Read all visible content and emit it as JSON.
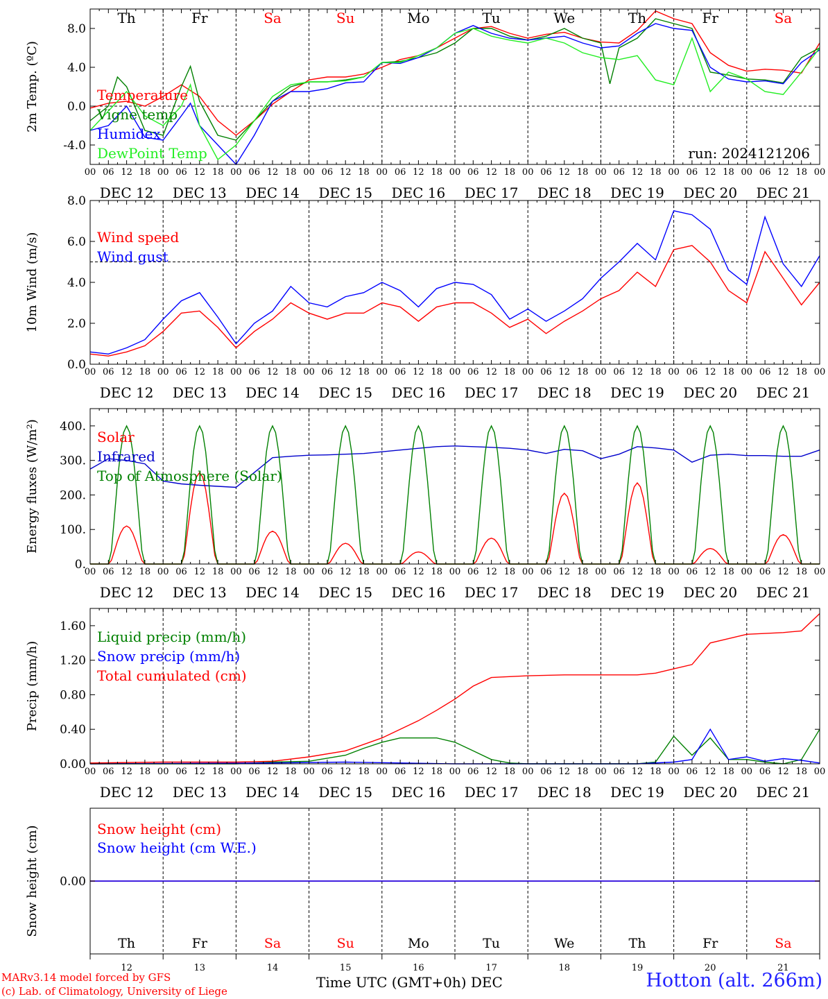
{
  "meta": {
    "run_label": "run: 2024121206",
    "model_credit": "MARv3.14 model forced by GFS",
    "copyright": "(c) Lab. of Climatology, University of Liege",
    "station": "Hotton (alt. 266m)",
    "x_axis_title": "Time UTC (GMT+0h)",
    "month": "DEC"
  },
  "days": [
    {
      "dow": "Th",
      "date": "DEC 12",
      "num": "12",
      "weekend": false
    },
    {
      "dow": "Fr",
      "date": "DEC 13",
      "num": "13",
      "weekend": false
    },
    {
      "dow": "Sa",
      "date": "DEC 14",
      "num": "14",
      "weekend": true
    },
    {
      "dow": "Su",
      "date": "DEC 15",
      "num": "15",
      "weekend": true
    },
    {
      "dow": "Mo",
      "date": "DEC 16",
      "num": "16",
      "weekend": false
    },
    {
      "dow": "Tu",
      "date": "DEC 17",
      "num": "17",
      "weekend": false
    },
    {
      "dow": "We",
      "date": "DEC 18",
      "num": "18",
      "weekend": false
    },
    {
      "dow": "Th",
      "date": "DEC 19",
      "num": "19",
      "weekend": false
    },
    {
      "dow": "Fr",
      "date": "DEC 20",
      "num": "20",
      "weekend": false
    },
    {
      "dow": "Sa",
      "date": "DEC 21",
      "num": "21",
      "weekend": true
    }
  ],
  "hour_ticks": [
    "00",
    "06",
    "12",
    "18"
  ],
  "final_tick": "00",
  "colors": {
    "red": "#ff0000",
    "darkgreen": "#008000",
    "blue": "#0000ff",
    "lightgreen": "#22ee22",
    "darkblue": "#0000cc"
  },
  "chart_data": [
    {
      "type": "line",
      "ylabel": "2m Temp. (ºC)",
      "ylim": [
        -6,
        10
      ],
      "yticks": [
        -4,
        0,
        4,
        8
      ],
      "ytick_labels": [
        "-4.0",
        "0.0",
        "4.0",
        "8.0"
      ],
      "ref_line": 0,
      "x_unit": "hours since DEC 12 00 UTC",
      "series": [
        {
          "name": "Temperature",
          "color": "#ff0000",
          "x": [
            0,
            6,
            12,
            18,
            24,
            30,
            36,
            42,
            48,
            54,
            60,
            66,
            72,
            78,
            84,
            90,
            96,
            102,
            108,
            114,
            120,
            126,
            132,
            138,
            144,
            150,
            156,
            162,
            168,
            174,
            180,
            186,
            192,
            198,
            204,
            210,
            216,
            222,
            228,
            234,
            240
          ],
          "y": [
            -0.2,
            0.3,
            0.5,
            0.0,
            1.0,
            2.2,
            1.0,
            -1.5,
            -3.0,
            -1.5,
            0.2,
            1.5,
            2.7,
            3.0,
            3.0,
            3.3,
            4.0,
            4.8,
            5.2,
            6.0,
            7.0,
            8.0,
            8.2,
            7.5,
            7.0,
            7.4,
            7.6,
            7.0,
            6.6,
            6.5,
            7.8,
            9.8,
            9.0,
            8.5,
            5.5,
            4.2,
            3.6,
            3.8,
            3.7,
            3.4,
            6.5
          ]
        },
        {
          "name": "Vigne temp",
          "color": "#008000",
          "x": [
            0,
            6,
            9,
            12,
            18,
            24,
            30,
            33,
            36,
            42,
            48,
            54,
            60,
            66,
            72,
            78,
            84,
            90,
            96,
            102,
            108,
            114,
            120,
            126,
            132,
            138,
            144,
            150,
            156,
            162,
            168,
            171,
            174,
            180,
            186,
            192,
            198,
            204,
            210,
            216,
            222,
            228,
            234,
            240
          ],
          "y": [
            -1.5,
            0.0,
            3.0,
            2.0,
            -2.5,
            -3.0,
            2.0,
            4.1,
            0.5,
            -3.0,
            -3.5,
            -1.5,
            0.5,
            2.0,
            2.5,
            2.5,
            2.7,
            3.0,
            4.5,
            4.6,
            5.0,
            5.5,
            6.5,
            8.0,
            8.0,
            7.2,
            6.8,
            7.2,
            8.0,
            7.0,
            6.5,
            2.3,
            6.0,
            7.0,
            9.0,
            8.5,
            8.0,
            3.5,
            3.2,
            2.8,
            2.7,
            2.4,
            5.0,
            6.0
          ]
        },
        {
          "name": "Humidex",
          "color": "#0000ff",
          "x": [
            0,
            6,
            12,
            18,
            24,
            30,
            33,
            36,
            42,
            48,
            54,
            60,
            66,
            72,
            78,
            84,
            90,
            96,
            102,
            108,
            114,
            120,
            126,
            132,
            138,
            144,
            150,
            156,
            162,
            168,
            174,
            180,
            186,
            192,
            198,
            204,
            210,
            216,
            222,
            228,
            234,
            240
          ],
          "y": [
            -2.5,
            -2.0,
            0.0,
            -3.2,
            -3.5,
            -1.0,
            0.3,
            -2.0,
            -4.0,
            -6.0,
            -3.0,
            0.5,
            1.5,
            1.5,
            1.8,
            2.4,
            2.5,
            4.5,
            4.4,
            5.0,
            6.0,
            7.5,
            8.3,
            7.5,
            7.0,
            6.8,
            7.0,
            7.2,
            6.5,
            6.0,
            6.2,
            7.5,
            8.5,
            8.0,
            7.8,
            4.0,
            2.8,
            2.5,
            2.6,
            2.3,
            4.5,
            5.8
          ]
        },
        {
          "name": "DewPoint Temp",
          "color": "#22ee22",
          "x": [
            0,
            6,
            12,
            18,
            24,
            30,
            33,
            36,
            42,
            48,
            54,
            60,
            66,
            72,
            78,
            84,
            90,
            96,
            102,
            108,
            114,
            120,
            126,
            132,
            138,
            144,
            150,
            156,
            162,
            168,
            174,
            180,
            186,
            192,
            198,
            204,
            210,
            216,
            222,
            228,
            234,
            240
          ],
          "y": [
            -2.5,
            -0.5,
            1.5,
            -1.0,
            -2.0,
            0.0,
            2.2,
            -2.0,
            -5.5,
            -4.0,
            -1.5,
            1.0,
            2.2,
            2.5,
            2.5,
            2.6,
            3.0,
            4.5,
            4.5,
            5.2,
            6.0,
            7.5,
            8.0,
            7.2,
            6.8,
            6.5,
            7.0,
            6.5,
            5.5,
            5.0,
            4.8,
            5.2,
            2.7,
            2.2,
            7.0,
            1.5,
            3.5,
            2.8,
            1.5,
            1.2,
            3.5,
            6.0
          ]
        }
      ]
    },
    {
      "type": "line",
      "ylabel": "10m Wind (m/s)",
      "ylim": [
        0,
        8
      ],
      "yticks": [
        0,
        2,
        4,
        6,
        8
      ],
      "ytick_labels": [
        "0.0",
        "2.0",
        "4.0",
        "6.0",
        "8.0"
      ],
      "ref_line": 5,
      "series": [
        {
          "name": "Wind speed",
          "color": "#ff0000",
          "x": [
            0,
            6,
            12,
            18,
            24,
            30,
            36,
            42,
            48,
            54,
            60,
            66,
            72,
            78,
            84,
            90,
            96,
            102,
            108,
            114,
            120,
            126,
            132,
            138,
            144,
            150,
            156,
            162,
            168,
            174,
            180,
            186,
            192,
            198,
            204,
            210,
            216,
            222,
            228,
            234,
            240
          ],
          "y": [
            0.5,
            0.4,
            0.6,
            0.9,
            1.6,
            2.5,
            2.6,
            1.8,
            0.8,
            1.6,
            2.2,
            3.0,
            2.5,
            2.2,
            2.5,
            2.5,
            3.0,
            2.8,
            2.1,
            2.8,
            3.0,
            3.0,
            2.5,
            1.8,
            2.2,
            1.5,
            2.1,
            2.6,
            3.2,
            3.6,
            4.5,
            3.8,
            5.6,
            5.8,
            5.0,
            3.6,
            3.0,
            5.5,
            4.2,
            2.9,
            4.0
          ]
        },
        {
          "name": "Wind gust",
          "color": "#0000ff",
          "x": [
            0,
            6,
            12,
            18,
            24,
            30,
            36,
            42,
            48,
            54,
            60,
            66,
            72,
            78,
            84,
            90,
            96,
            102,
            108,
            114,
            120,
            126,
            132,
            138,
            144,
            150,
            156,
            162,
            168,
            174,
            180,
            186,
            192,
            198,
            204,
            210,
            216,
            222,
            228,
            234,
            240
          ],
          "y": [
            0.6,
            0.5,
            0.8,
            1.2,
            2.2,
            3.1,
            3.5,
            2.3,
            1.0,
            2.0,
            2.6,
            3.8,
            3.0,
            2.8,
            3.3,
            3.5,
            4.0,
            3.6,
            2.8,
            3.7,
            4.0,
            3.9,
            3.4,
            2.2,
            2.7,
            2.1,
            2.6,
            3.2,
            4.2,
            5.0,
            5.9,
            5.1,
            7.5,
            7.3,
            6.6,
            4.6,
            3.9,
            7.2,
            4.9,
            3.8,
            5.3
          ]
        }
      ]
    },
    {
      "type": "line",
      "ylabel": "Energy fluxes (W/m²)",
      "ylim": [
        0,
        450
      ],
      "yticks": [
        0,
        100,
        200,
        300,
        400
      ],
      "ytick_labels": [
        "0.",
        "100.",
        "200.",
        "300.",
        "400."
      ],
      "series": [
        {
          "name": "Solar",
          "color": "#ff0000",
          "diurnal": true,
          "peaks": [
            110,
            265,
            95,
            60,
            35,
            75,
            205,
            235,
            45,
            85
          ]
        },
        {
          "name": "Infrared",
          "color": "#0000cc",
          "x": [
            0,
            6,
            12,
            18,
            24,
            30,
            36,
            42,
            48,
            54,
            60,
            66,
            72,
            78,
            84,
            90,
            96,
            102,
            108,
            114,
            120,
            126,
            132,
            138,
            144,
            150,
            156,
            162,
            168,
            174,
            180,
            186,
            192,
            198,
            204,
            210,
            216,
            222,
            228,
            234,
            240
          ],
          "y": [
            275,
            305,
            300,
            290,
            240,
            232,
            228,
            225,
            222,
            265,
            308,
            312,
            315,
            316,
            318,
            320,
            325,
            330,
            335,
            340,
            342,
            340,
            338,
            335,
            330,
            320,
            332,
            328,
            305,
            318,
            340,
            336,
            330,
            295,
            315,
            318,
            314,
            314,
            312,
            312,
            330
          ]
        },
        {
          "name": "Top of Atmosphere (Solar)",
          "color": "#008000",
          "diurnal": true,
          "peaks": [
            400,
            400,
            400,
            400,
            400,
            400,
            400,
            400,
            400,
            400
          ]
        }
      ]
    },
    {
      "type": "line",
      "ylabel": "Precip (mm/h)",
      "ylim": [
        0,
        1.8
      ],
      "yticks": [
        0,
        0.4,
        0.8,
        1.2,
        1.6
      ],
      "ytick_labels": [
        "0.00",
        "0.40",
        "0.80",
        "1.20",
        "1.60"
      ],
      "series": [
        {
          "name": "Liquid precip (mm/h)",
          "color": "#008000",
          "x": [
            0,
            48,
            60,
            72,
            84,
            90,
            96,
            102,
            108,
            114,
            120,
            126,
            132,
            138,
            144,
            150,
            156,
            162,
            168,
            174,
            180,
            186,
            192,
            198,
            204,
            210,
            216,
            222,
            228,
            234,
            240
          ],
          "y": [
            0.0,
            0.0,
            0.02,
            0.03,
            0.1,
            0.18,
            0.25,
            0.3,
            0.3,
            0.3,
            0.25,
            0.15,
            0.05,
            0.01,
            0.0,
            0.0,
            0.0,
            0.0,
            0.0,
            0.0,
            0.0,
            0.02,
            0.32,
            0.1,
            0.3,
            0.05,
            0.05,
            0.02,
            0.0,
            0.05,
            0.4
          ]
        },
        {
          "name": "Snow precip (mm/h)",
          "color": "#0000ff",
          "x": [
            0,
            60,
            84,
            120,
            180,
            192,
            198,
            204,
            210,
            216,
            222,
            228,
            234,
            240
          ],
          "y": [
            0.0,
            0.01,
            0.02,
            0.0,
            0.0,
            0.02,
            0.05,
            0.4,
            0.05,
            0.08,
            0.03,
            0.06,
            0.04,
            0.01
          ]
        },
        {
          "name": "Total cumulated (cm)",
          "color": "#ff0000",
          "x": [
            0,
            24,
            48,
            60,
            72,
            84,
            96,
            108,
            114,
            120,
            126,
            132,
            144,
            156,
            168,
            180,
            186,
            192,
            198,
            204,
            210,
            216,
            228,
            234,
            240
          ],
          "y": [
            0.01,
            0.02,
            0.02,
            0.03,
            0.08,
            0.15,
            0.3,
            0.5,
            0.62,
            0.75,
            0.9,
            1.0,
            1.02,
            1.03,
            1.03,
            1.03,
            1.05,
            1.1,
            1.15,
            1.4,
            1.45,
            1.5,
            1.52,
            1.54,
            1.74
          ]
        }
      ]
    },
    {
      "type": "line",
      "ylabel": "Snow height (cm)",
      "ylim": [
        -1,
        1
      ],
      "yticks": [
        0
      ],
      "ytick_labels": [
        "0.00"
      ],
      "series": [
        {
          "name": "Snow height (cm)",
          "color": "#ff0000",
          "x": [
            0,
            240
          ],
          "y": [
            0,
            0
          ]
        },
        {
          "name": "Snow height (cm W.E.)",
          "color": "#0000ff",
          "x": [
            0,
            240
          ],
          "y": [
            0,
            0
          ]
        }
      ]
    }
  ]
}
